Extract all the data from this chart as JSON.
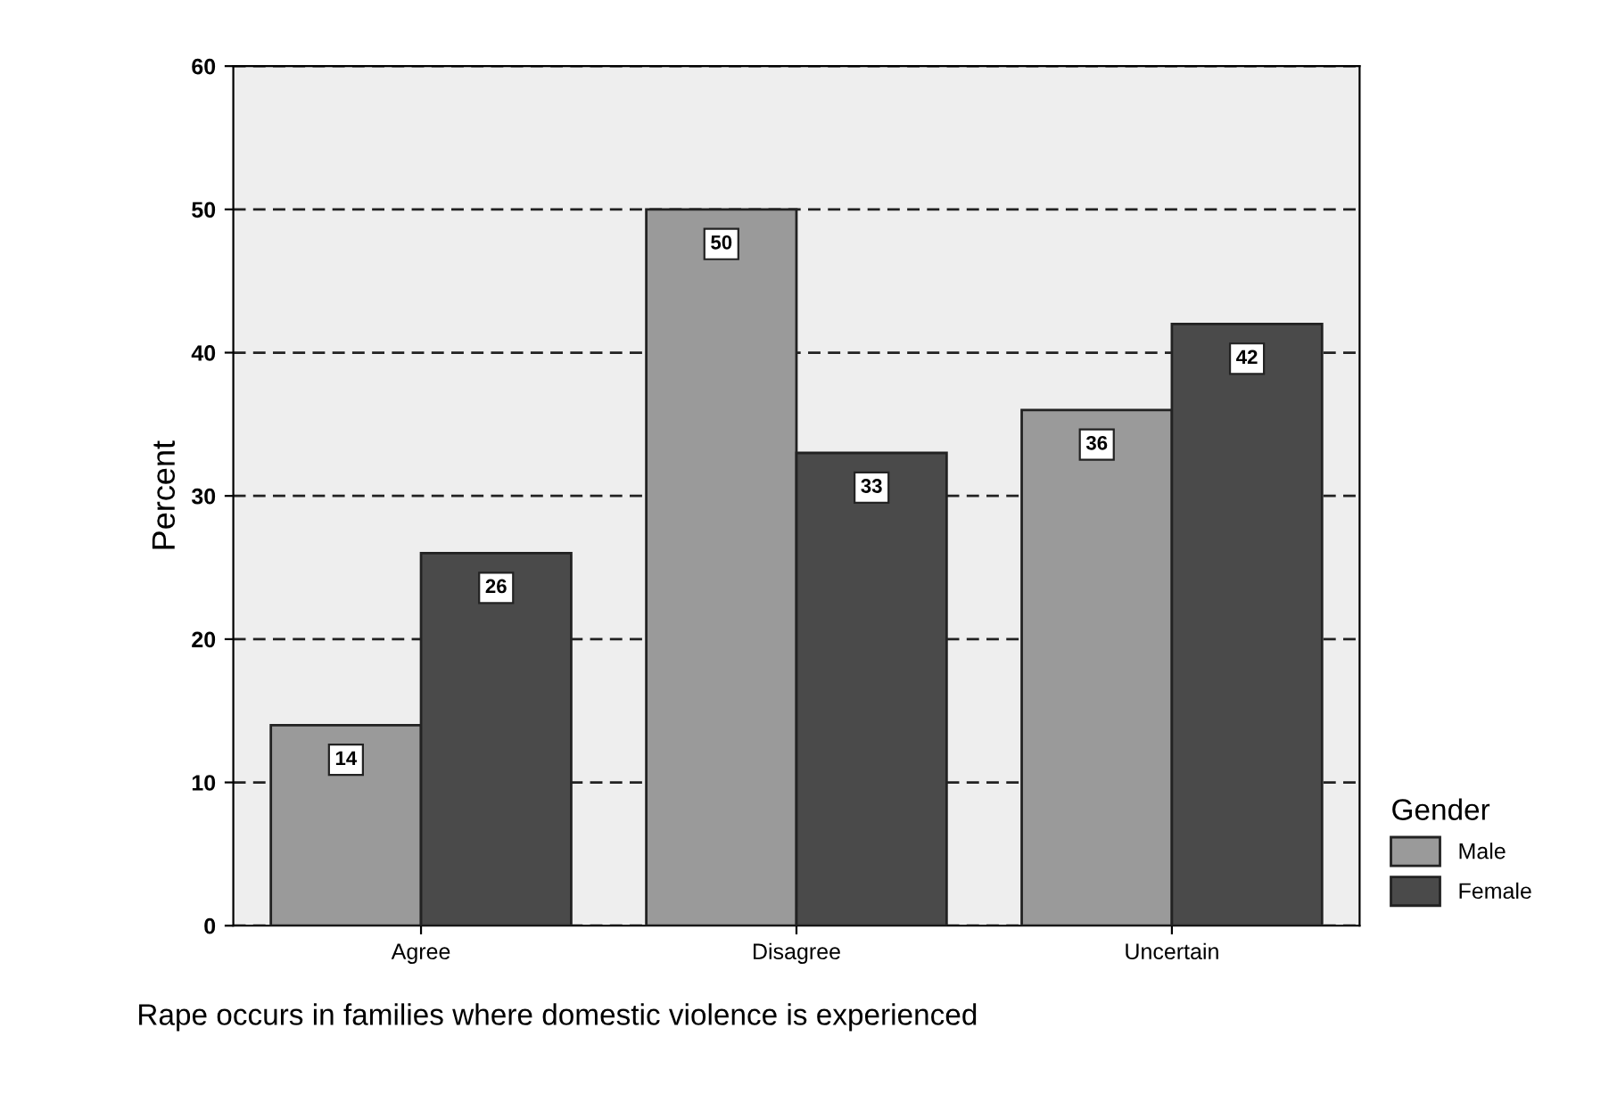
{
  "chart_data": {
    "type": "bar",
    "categories": [
      "Agree",
      "Disagree",
      "Uncertain"
    ],
    "series": [
      {
        "name": "Male",
        "color": "#9a9a9a",
        "values": [
          14,
          50,
          36
        ]
      },
      {
        "name": "Female",
        "color": "#4a4a4a",
        "values": [
          26,
          33,
          42
        ]
      }
    ],
    "ylabel": "Percent",
    "legend_title": "Gender",
    "legend": "bottom right",
    "grid": "y",
    "line_style": "dashed",
    "ylim": [
      0,
      60
    ],
    "yticks": [
      0,
      10,
      20,
      30,
      40,
      50,
      60
    ],
    "data_labels": true,
    "annotations": [
      "Rape occurs in families where domestic violence is experienced"
    ]
  }
}
